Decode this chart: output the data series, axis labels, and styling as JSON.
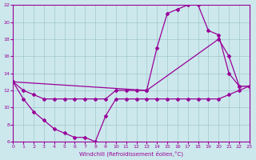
{
  "xlabel": "Windchill (Refroidissement éolien,°C)",
  "bg_color": "#cce8ec",
  "grid_color": "#a0c8cc",
  "line_color": "#990099",
  "xmin": 0,
  "xmax": 23,
  "ymin": 6,
  "ymax": 22,
  "yticks": [
    6,
    8,
    10,
    12,
    14,
    16,
    18,
    20,
    22
  ],
  "series1_x": [
    0,
    1,
    2,
    3,
    4,
    5,
    6,
    7,
    8,
    9,
    10,
    11,
    12,
    13,
    14,
    15,
    16,
    17,
    18,
    19,
    20,
    21,
    22,
    23
  ],
  "series1_y": [
    13,
    12,
    11.5,
    11,
    11,
    11,
    11,
    11,
    11,
    11,
    12,
    12,
    12,
    12,
    17,
    21,
    21.5,
    22,
    22,
    19,
    18.5,
    14,
    12.5,
    12.5
  ],
  "series2_x": [
    0,
    13,
    20,
    21,
    22,
    23
  ],
  "series2_y": [
    13,
    12,
    18,
    16,
    12.5,
    12.5
  ],
  "series3_x": [
    0,
    1,
    2,
    3,
    4,
    5,
    6,
    7,
    8,
    9,
    10,
    11,
    12,
    13,
    14,
    15,
    16,
    17,
    18,
    19,
    20,
    21,
    22,
    23
  ],
  "series3_y": [
    13,
    11,
    9.5,
    8.5,
    7.5,
    7,
    6.5,
    6.5,
    6,
    9,
    11,
    11,
    11,
    11,
    11,
    11,
    11,
    11,
    11,
    11,
    11,
    11.5,
    12,
    12.5
  ]
}
